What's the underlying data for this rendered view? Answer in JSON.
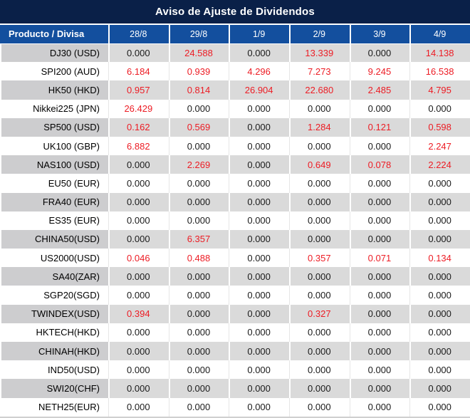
{
  "title": "Aviso de Ajuste de Dividendos",
  "colors": {
    "title_bg": "#0a2048",
    "header_bg": "#134f9e",
    "header_text": "#ffffff",
    "row_gray_label": "#cdcdcf",
    "row_gray_value": "#dadada",
    "value_black": "#1a1a1a",
    "value_red": "#ed1c24"
  },
  "table": {
    "product_header": "Producto / Divisa",
    "date_headers": [
      "28/8",
      "29/8",
      "1/9",
      "2/9",
      "3/9",
      "4/9"
    ],
    "rows": [
      {
        "product": "DJ30 (USD)",
        "values": [
          "0.000",
          "24.588",
          "0.000",
          "13.339",
          "0.000",
          "14.138"
        ]
      },
      {
        "product": "SPI200 (AUD)",
        "values": [
          "6.184",
          "0.939",
          "4.296",
          "7.273",
          "9.245",
          "16.538"
        ]
      },
      {
        "product": "HK50 (HKD)",
        "values": [
          "0.957",
          "0.814",
          "26.904",
          "22.680",
          "2.485",
          "4.795"
        ]
      },
      {
        "product": "Nikkei225 (JPN)",
        "values": [
          "26.429",
          "0.000",
          "0.000",
          "0.000",
          "0.000",
          "0.000"
        ]
      },
      {
        "product": "SP500 (USD)",
        "values": [
          "0.162",
          "0.569",
          "0.000",
          "1.284",
          "0.121",
          "0.598"
        ]
      },
      {
        "product": "UK100 (GBP)",
        "values": [
          "6.882",
          "0.000",
          "0.000",
          "0.000",
          "0.000",
          "2.247"
        ]
      },
      {
        "product": "NAS100 (USD)",
        "values": [
          "0.000",
          "2.269",
          "0.000",
          "0.649",
          "0.078",
          "2.224"
        ]
      },
      {
        "product": "EU50 (EUR)",
        "values": [
          "0.000",
          "0.000",
          "0.000",
          "0.000",
          "0.000",
          "0.000"
        ]
      },
      {
        "product": "FRA40 (EUR)",
        "values": [
          "0.000",
          "0.000",
          "0.000",
          "0.000",
          "0.000",
          "0.000"
        ]
      },
      {
        "product": "ES35 (EUR)",
        "values": [
          "0.000",
          "0.000",
          "0.000",
          "0.000",
          "0.000",
          "0.000"
        ]
      },
      {
        "product": "CHINA50(USD)",
        "values": [
          "0.000",
          "6.357",
          "0.000",
          "0.000",
          "0.000",
          "0.000"
        ]
      },
      {
        "product": "US2000(USD)",
        "values": [
          "0.046",
          "0.488",
          "0.000",
          "0.357",
          "0.071",
          "0.134"
        ]
      },
      {
        "product": "SA40(ZAR)",
        "values": [
          "0.000",
          "0.000",
          "0.000",
          "0.000",
          "0.000",
          "0.000"
        ]
      },
      {
        "product": "SGP20(SGD)",
        "values": [
          "0.000",
          "0.000",
          "0.000",
          "0.000",
          "0.000",
          "0.000"
        ]
      },
      {
        "product": "TWINDEX(USD)",
        "values": [
          "0.394",
          "0.000",
          "0.000",
          "0.327",
          "0.000",
          "0.000"
        ]
      },
      {
        "product": "HKTECH(HKD)",
        "values": [
          "0.000",
          "0.000",
          "0.000",
          "0.000",
          "0.000",
          "0.000"
        ]
      },
      {
        "product": "CHINAH(HKD)",
        "values": [
          "0.000",
          "0.000",
          "0.000",
          "0.000",
          "0.000",
          "0.000"
        ]
      },
      {
        "product": "IND50(USD)",
        "values": [
          "0.000",
          "0.000",
          "0.000",
          "0.000",
          "0.000",
          "0.000"
        ]
      },
      {
        "product": "SWI20(CHF)",
        "values": [
          "0.000",
          "0.000",
          "0.000",
          "0.000",
          "0.000",
          "0.000"
        ]
      },
      {
        "product": "NETH25(EUR)",
        "values": [
          "0.000",
          "0.000",
          "0.000",
          "0.000",
          "0.000",
          "0.000"
        ]
      }
    ]
  },
  "chart_data": {
    "type": "table",
    "title": "Aviso de Ajuste de Dividendos",
    "columns": [
      "Producto / Divisa",
      "28/8",
      "29/8",
      "1/9",
      "2/9",
      "3/9",
      "4/9"
    ],
    "rows": [
      [
        "DJ30 (USD)",
        0.0,
        24.588,
        0.0,
        13.339,
        0.0,
        14.138
      ],
      [
        "SPI200 (AUD)",
        6.184,
        0.939,
        4.296,
        7.273,
        9.245,
        16.538
      ],
      [
        "HK50 (HKD)",
        0.957,
        0.814,
        26.904,
        22.68,
        2.485,
        4.795
      ],
      [
        "Nikkei225 (JPN)",
        26.429,
        0.0,
        0.0,
        0.0,
        0.0,
        0.0
      ],
      [
        "SP500 (USD)",
        0.162,
        0.569,
        0.0,
        1.284,
        0.121,
        0.598
      ],
      [
        "UK100 (GBP)",
        6.882,
        0.0,
        0.0,
        0.0,
        0.0,
        2.247
      ],
      [
        "NAS100 (USD)",
        0.0,
        2.269,
        0.0,
        0.649,
        0.078,
        2.224
      ],
      [
        "EU50 (EUR)",
        0.0,
        0.0,
        0.0,
        0.0,
        0.0,
        0.0
      ],
      [
        "FRA40 (EUR)",
        0.0,
        0.0,
        0.0,
        0.0,
        0.0,
        0.0
      ],
      [
        "ES35 (EUR)",
        0.0,
        0.0,
        0.0,
        0.0,
        0.0,
        0.0
      ],
      [
        "CHINA50(USD)",
        0.0,
        6.357,
        0.0,
        0.0,
        0.0,
        0.0
      ],
      [
        "US2000(USD)",
        0.046,
        0.488,
        0.0,
        0.357,
        0.071,
        0.134
      ],
      [
        "SA40(ZAR)",
        0.0,
        0.0,
        0.0,
        0.0,
        0.0,
        0.0
      ],
      [
        "SGP20(SGD)",
        0.0,
        0.0,
        0.0,
        0.0,
        0.0,
        0.0
      ],
      [
        "TWINDEX(USD)",
        0.394,
        0.0,
        0.0,
        0.327,
        0.0,
        0.0
      ],
      [
        "HKTECH(HKD)",
        0.0,
        0.0,
        0.0,
        0.0,
        0.0,
        0.0
      ],
      [
        "CHINAH(HKD)",
        0.0,
        0.0,
        0.0,
        0.0,
        0.0,
        0.0
      ],
      [
        "IND50(USD)",
        0.0,
        0.0,
        0.0,
        0.0,
        0.0,
        0.0
      ],
      [
        "SWI20(CHF)",
        0.0,
        0.0,
        0.0,
        0.0,
        0.0,
        0.0
      ],
      [
        "NETH25(EUR)",
        0.0,
        0.0,
        0.0,
        0.0,
        0.0,
        0.0
      ]
    ],
    "value_format": "3 decimals",
    "highlight_rule": "non-zero values rendered in red",
    "notes": "rows alternate gray/white starting gray"
  }
}
